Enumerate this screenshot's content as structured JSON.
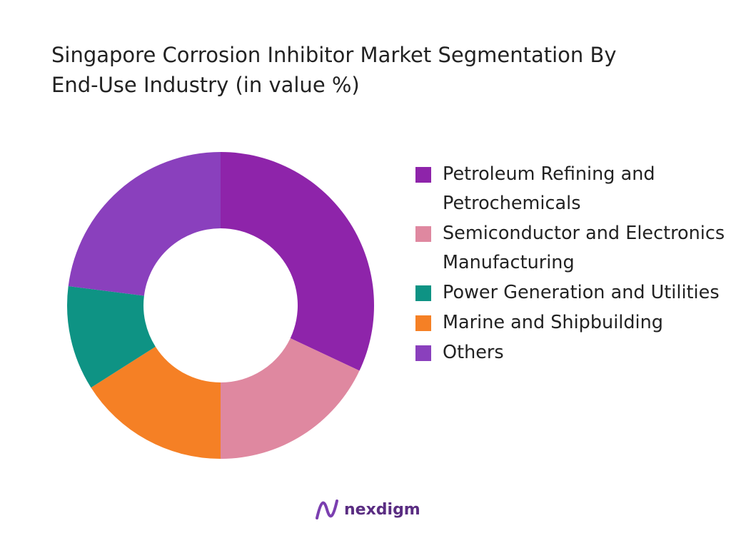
{
  "chart_data": {
    "type": "donut",
    "title": "Singapore Corrosion Inhibitor Market Segmentation By End-Use Industry (in value %)",
    "categories": [
      "Petroleum Refining and Petrochemicals",
      "Semiconductor and Electronics Manufacturing",
      "Marine and Shipbuilding",
      "Power Generation and Utilities",
      "Others"
    ],
    "values": [
      32,
      18,
      16,
      11,
      23
    ],
    "colors": [
      "#8e24aa",
      "#df88a0",
      "#f58025",
      "#0e9384",
      "#8a40bd"
    ],
    "legend_order": [
      0,
      1,
      3,
      2,
      4
    ],
    "legend": "right"
  },
  "logo": "nexdigm"
}
